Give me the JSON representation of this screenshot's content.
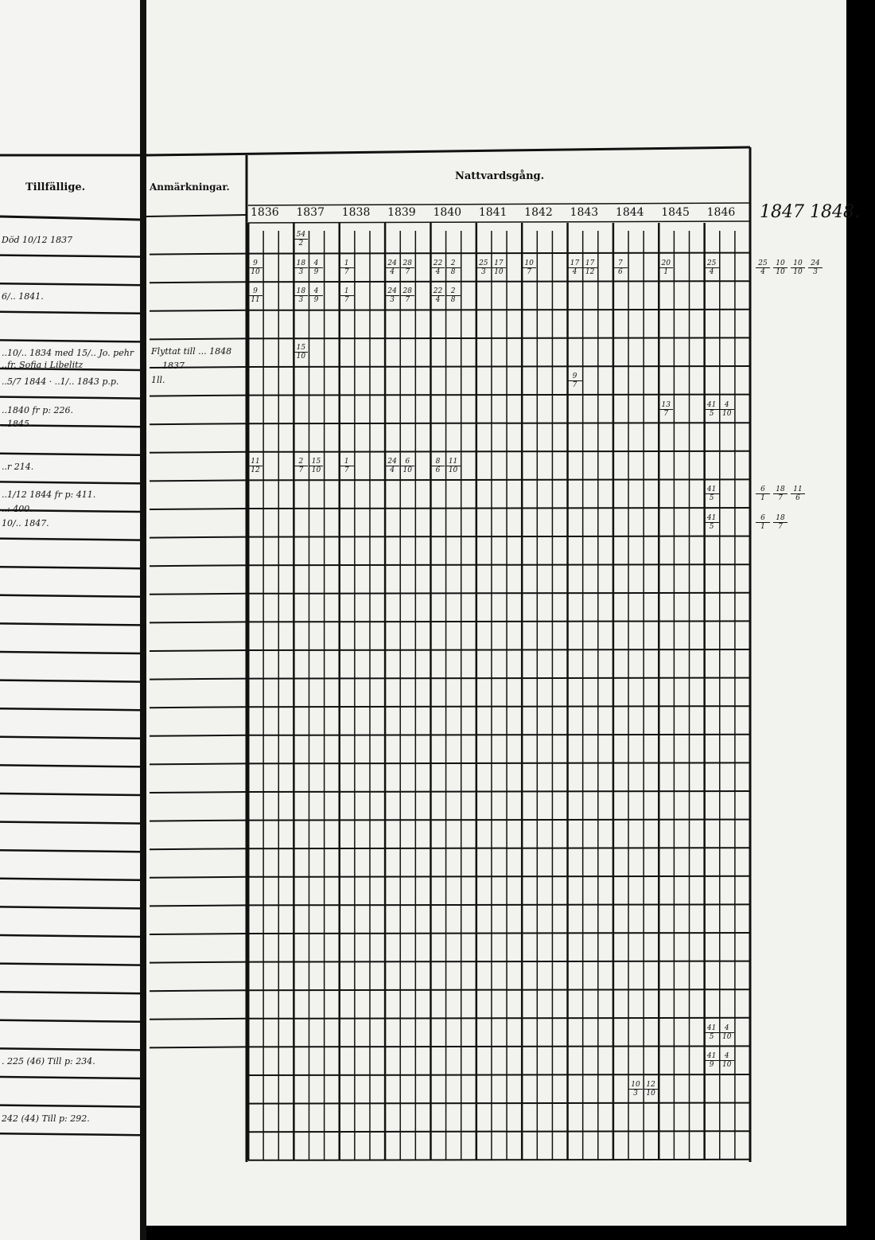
{
  "headers": {
    "tillfallige": "Tillfällige.",
    "anmarkningar": "Anmärkningar.",
    "nattvardsgang": "Nattvardsgång."
  },
  "years": [
    "1836",
    "1837",
    "1838",
    "1839",
    "1840",
    "1841",
    "1842",
    "1843",
    "1844",
    "1845",
    "1846"
  ],
  "extra_years": "1847 1848.",
  "left_notes": [
    {
      "row": 0,
      "text": "Död 10/12 1837"
    },
    {
      "row": 2,
      "text": "6/.. 1841."
    },
    {
      "row": 4,
      "text": "..10/.. 1834 med 15/.. Jo. pehr"
    },
    {
      "row": 4.4,
      "text": "..fr. Sofia i Libelitz"
    },
    {
      "row": 5,
      "text": "..5/7 1844 · ..1/.. 1843 p.p."
    },
    {
      "row": 6,
      "text": "..1840 fr p: 226."
    },
    {
      "row": 6.5,
      "text": "..1845"
    },
    {
      "row": 8,
      "text": "..r 214."
    },
    {
      "row": 9,
      "text": "..1/12 1844 fr p: 411."
    },
    {
      "row": 9.5,
      "text": "..: 400."
    },
    {
      "row": 10,
      "text": "10/.. 1847."
    },
    {
      "row": 29,
      "text": ". 225 (46) Till p: 234."
    },
    {
      "row": 31,
      "text": "242 (44) Till p: 292."
    }
  ],
  "remarks": [
    {
      "row": 4,
      "text": "Flyttat till ... 1848"
    },
    {
      "row": 4.5,
      "text": "... 1837"
    },
    {
      "row": 5,
      "text": "1ll."
    }
  ],
  "entries": [
    {
      "row": 0,
      "year": 1,
      "sub": 0,
      "n": "54",
      "d": "2"
    },
    {
      "row": 1,
      "year": 0,
      "sub": 0,
      "n": "9",
      "d": "10"
    },
    {
      "row": 1,
      "year": 1,
      "sub": 0,
      "n": "18",
      "d": "3"
    },
    {
      "row": 1,
      "year": 1,
      "sub": 1,
      "n": "4",
      "d": "9"
    },
    {
      "row": 1,
      "year": 2,
      "sub": 0,
      "n": "1",
      "d": "7"
    },
    {
      "row": 1,
      "year": 3,
      "sub": 0,
      "n": "24",
      "d": "4"
    },
    {
      "row": 1,
      "year": 3,
      "sub": 1,
      "n": "28",
      "d": "7"
    },
    {
      "row": 1,
      "year": 4,
      "sub": 0,
      "n": "22",
      "d": "4"
    },
    {
      "row": 1,
      "year": 4,
      "sub": 1,
      "n": "2",
      "d": "8"
    },
    {
      "row": 1,
      "year": 5,
      "sub": 0,
      "n": "25",
      "d": "3"
    },
    {
      "row": 1,
      "year": 5,
      "sub": 1,
      "n": "17",
      "d": "10"
    },
    {
      "row": 1,
      "year": 6,
      "sub": 0,
      "n": "10",
      "d": "7"
    },
    {
      "row": 1,
      "year": 7,
      "sub": 0,
      "n": "17",
      "d": "4"
    },
    {
      "row": 1,
      "year": 7,
      "sub": 1,
      "n": "17",
      "d": "12"
    },
    {
      "row": 1,
      "year": 8,
      "sub": 0,
      "n": "7",
      "d": "6"
    },
    {
      "row": 1,
      "year": 9,
      "sub": 0,
      "n": "20",
      "d": "1"
    },
    {
      "row": 1,
      "year": 10,
      "sub": 0,
      "n": "25",
      "d": "4"
    },
    {
      "row": 2,
      "year": 0,
      "sub": 0,
      "n": "9",
      "d": "11"
    },
    {
      "row": 2,
      "year": 1,
      "sub": 0,
      "n": "18",
      "d": "3"
    },
    {
      "row": 2,
      "year": 1,
      "sub": 1,
      "n": "4",
      "d": "9"
    },
    {
      "row": 2,
      "year": 2,
      "sub": 0,
      "n": "1",
      "d": "7"
    },
    {
      "row": 2,
      "year": 3,
      "sub": 0,
      "n": "24",
      "d": "3"
    },
    {
      "row": 2,
      "year": 3,
      "sub": 1,
      "n": "28",
      "d": "7"
    },
    {
      "row": 2,
      "year": 4,
      "sub": 0,
      "n": "22",
      "d": "4"
    },
    {
      "row": 2,
      "year": 4,
      "sub": 1,
      "n": "2",
      "d": "8"
    },
    {
      "row": 4,
      "year": 1,
      "sub": 0,
      "n": "15",
      "d": "10"
    },
    {
      "row": 5,
      "year": 7,
      "sub": 0,
      "n": "9",
      "d": "7"
    },
    {
      "row": 6,
      "year": 9,
      "sub": 0,
      "n": "13",
      "d": "7"
    },
    {
      "row": 6,
      "year": 10,
      "sub": 0,
      "n": "41",
      "d": "5"
    },
    {
      "row": 6,
      "year": 10,
      "sub": 1,
      "n": "4",
      "d": "10"
    },
    {
      "row": 8,
      "year": 0,
      "sub": 0,
      "n": "11",
      "d": "12"
    },
    {
      "row": 8,
      "year": 1,
      "sub": 0,
      "n": "2",
      "d": "7"
    },
    {
      "row": 8,
      "year": 1,
      "sub": 1,
      "n": "15",
      "d": "10"
    },
    {
      "row": 8,
      "year": 2,
      "sub": 0,
      "n": "1",
      "d": "7"
    },
    {
      "row": 8,
      "year": 3,
      "sub": 0,
      "n": "24",
      "d": "4"
    },
    {
      "row": 8,
      "year": 3,
      "sub": 1,
      "n": "6",
      "d": "10"
    },
    {
      "row": 8,
      "year": 4,
      "sub": 0,
      "n": "8",
      "d": "6"
    },
    {
      "row": 8,
      "year": 4,
      "sub": 1,
      "n": "11",
      "d": "10"
    },
    {
      "row": 9,
      "year": 10,
      "sub": 0,
      "n": "41",
      "d": "5"
    },
    {
      "row": 10,
      "year": 10,
      "sub": 0,
      "n": "41",
      "d": "5"
    },
    {
      "row": 28,
      "year": 10,
      "sub": 0,
      "n": "41",
      "d": "5"
    },
    {
      "row": 28,
      "year": 10,
      "sub": 1,
      "n": "4",
      "d": "10"
    },
    {
      "row": 29,
      "year": 10,
      "sub": 0,
      "n": "41",
      "d": "9"
    },
    {
      "row": 29,
      "year": 10,
      "sub": 1,
      "n": "4",
      "d": "10"
    },
    {
      "row": 30,
      "year": 8,
      "sub": 1,
      "n": "10",
      "d": "3"
    },
    {
      "row": 30,
      "year": 8,
      "sub": 2,
      "n": "12",
      "d": "10"
    }
  ],
  "margin_entries": [
    {
      "row": 1,
      "items": [
        {
          "n": "25",
          "d": "4"
        },
        {
          "n": "10",
          "d": "10"
        },
        {
          "n": "10",
          "d": "10"
        },
        {
          "n": "24",
          "d": "3"
        }
      ]
    },
    {
      "row": 9,
      "items": [
        {
          "n": "6",
          "d": "1"
        },
        {
          "n": "18",
          "d": "7"
        },
        {
          "n": "11",
          "d": "6"
        }
      ]
    },
    {
      "row": 10,
      "items": [
        {
          "n": "6",
          "d": "1"
        },
        {
          "n": "18",
          "d": "7"
        }
      ]
    }
  ]
}
